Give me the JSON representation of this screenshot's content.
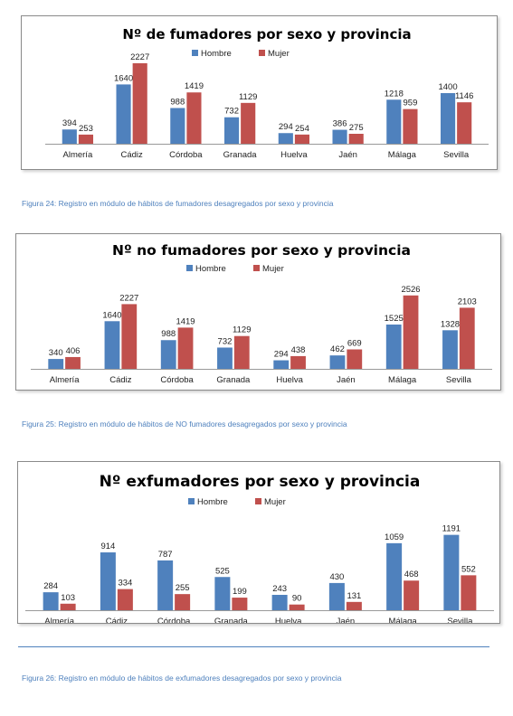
{
  "colors": {
    "hombre": "#4f81bd",
    "mujer": "#c0504d"
  },
  "chart_data": [
    {
      "type": "bar",
      "title": "Nº de fumadores por sexo y provincia",
      "categories": [
        "Almería",
        "Cádiz",
        "Córdoba",
        "Granada",
        "Huelva",
        "Jaén",
        "Málaga",
        "Sevilla"
      ],
      "series": [
        {
          "name": "Hombre",
          "values": [
            394,
            1640,
            988,
            732,
            294,
            386,
            1218,
            1400
          ]
        },
        {
          "name": "Mujer",
          "values": [
            253,
            2227,
            1419,
            1129,
            254,
            275,
            959,
            1146
          ]
        }
      ],
      "ylim": [
        0,
        2500
      ],
      "legend": "top-center",
      "grid": false,
      "caption": "Figura 24: Registro en módulo de hábitos de fumadores desagregados por sexo y provincia"
    },
    {
      "type": "bar",
      "title": "Nº no fumadores por sexo y provincia",
      "categories": [
        "Almería",
        "Cádiz",
        "Córdoba",
        "Granada",
        "Huelva",
        "Jaén",
        "Málaga",
        "Sevilla"
      ],
      "series": [
        {
          "name": "Hombre",
          "values": [
            340,
            1640,
            988,
            732,
            294,
            462,
            1525,
            1328
          ]
        },
        {
          "name": "Mujer",
          "values": [
            406,
            2227,
            1419,
            1129,
            438,
            669,
            2526,
            2103
          ]
        }
      ],
      "ylim": [
        0,
        2800
      ],
      "legend": "top-center",
      "grid": false,
      "caption": "Figura 25: Registro en módulo de hábitos de NO fumadores desagregados por sexo y provincia"
    },
    {
      "type": "bar",
      "title": "Nº exfumadores por sexo y provincia",
      "categories": [
        "Almería",
        "Cádiz",
        "Córdoba",
        "Granada",
        "Huelva",
        "Jaén",
        "Málaga",
        "Sevilla"
      ],
      "series": [
        {
          "name": "Hombre",
          "values": [
            284,
            914,
            787,
            525,
            243,
            430,
            1059,
            1191
          ]
        },
        {
          "name": "Mujer",
          "values": [
            103,
            334,
            255,
            199,
            90,
            131,
            468,
            552
          ]
        }
      ],
      "ylim": [
        0,
        1300
      ],
      "legend": "top-center",
      "grid": false,
      "caption": "Figura 26: Registro en módulo de hábitos de exfumadores desagregados por sexo y provincia"
    }
  ]
}
